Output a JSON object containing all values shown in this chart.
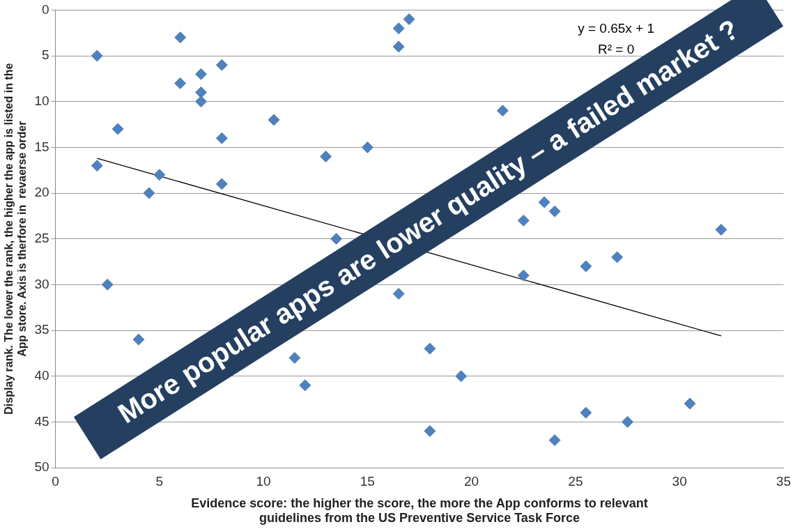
{
  "chart_data": {
    "type": "scatter",
    "xlabel": "Evidence score: the higher the score, the more the App conforms to relevant\nguidelines from the US Preventive Service Task Force",
    "ylabel": "Display rank. The lower the rank, the higher the app is listed in the\nApp store. Axis is therfore in  revaerse order",
    "xlim": [
      0,
      35
    ],
    "xticks": [
      0,
      5,
      10,
      15,
      20,
      25,
      30,
      35
    ],
    "ylim": [
      50,
      0
    ],
    "yticks": [
      0,
      5,
      10,
      15,
      20,
      25,
      30,
      35,
      40,
      45,
      50
    ],
    "grid": "y",
    "marker": "diamond",
    "legend": false,
    "series": [
      {
        "color": "#4f81bd",
        "x": [
          2,
          6,
          6,
          7,
          7,
          7,
          8,
          3,
          10.5,
          8,
          2,
          5,
          4.5,
          8,
          13,
          15,
          16.5,
          17,
          16.5,
          21.5,
          22.5,
          23.5,
          24,
          32,
          13.5,
          22.5,
          25.5,
          27,
          16.5,
          2.5,
          4,
          18,
          11.5,
          12,
          19.5,
          18,
          24,
          25.5,
          27.5,
          30.5
        ],
        "values": [
          5,
          3,
          8,
          7,
          9,
          10,
          6,
          13,
          12,
          14,
          17,
          18,
          20,
          19,
          16,
          15,
          2,
          1,
          4,
          11,
          23,
          21,
          22,
          24,
          25,
          29,
          28,
          27,
          31,
          30,
          36,
          37,
          38,
          41,
          40,
          46,
          47,
          44,
          45,
          43
        ]
      },
      {
        "type": "line",
        "color": "#000000",
        "marker": "none",
        "x": [
          2,
          32
        ],
        "values": [
          16.2,
          35.6
        ]
      }
    ],
    "annotations": [
      "y = 0.65x + 1",
      "R² = 0",
      "More popular apps are lower quality – a failed market ?"
    ]
  }
}
